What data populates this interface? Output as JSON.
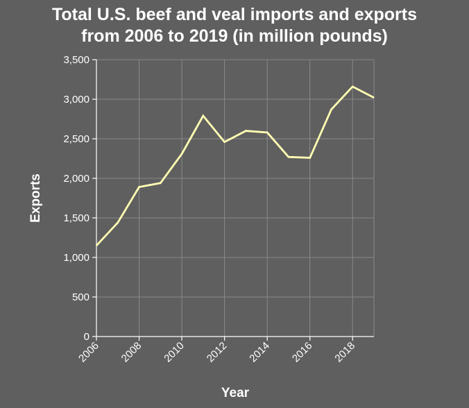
{
  "chart_data": {
    "type": "line",
    "title_lines": [
      "Total U.S. beef and veal imports and exports",
      "from 2006 to 2019 (in million pounds)"
    ],
    "xlabel": "Year",
    "ylabel": "Exports",
    "xlim": [
      2006,
      2019
    ],
    "ylim": [
      0,
      3500
    ],
    "x_ticks": [
      2006,
      2008,
      2010,
      2012,
      2014,
      2016,
      2018
    ],
    "y_ticks": [
      0,
      500,
      1000,
      1500,
      2000,
      2500,
      3000,
      3500
    ],
    "y_tick_labels": [
      "0",
      "500",
      "1,000",
      "1,500",
      "2,000",
      "2,500",
      "3,000",
      "3,500"
    ],
    "grid": true,
    "series": [
      {
        "x": [
          2006,
          2007,
          2008,
          2009,
          2010,
          2011,
          2012,
          2013,
          2014,
          2015,
          2016,
          2017,
          2018,
          2019
        ],
        "values": [
          1150,
          1440,
          1890,
          1940,
          2310,
          2790,
          2460,
          2600,
          2580,
          2270,
          2260,
          2870,
          3160,
          3020
        ]
      }
    ],
    "colors": {
      "background": "#5f5f5f",
      "grid": "#8a8a8a",
      "axis": "#ffffff",
      "line": "#ffffb3",
      "text": "#ffffff"
    }
  }
}
